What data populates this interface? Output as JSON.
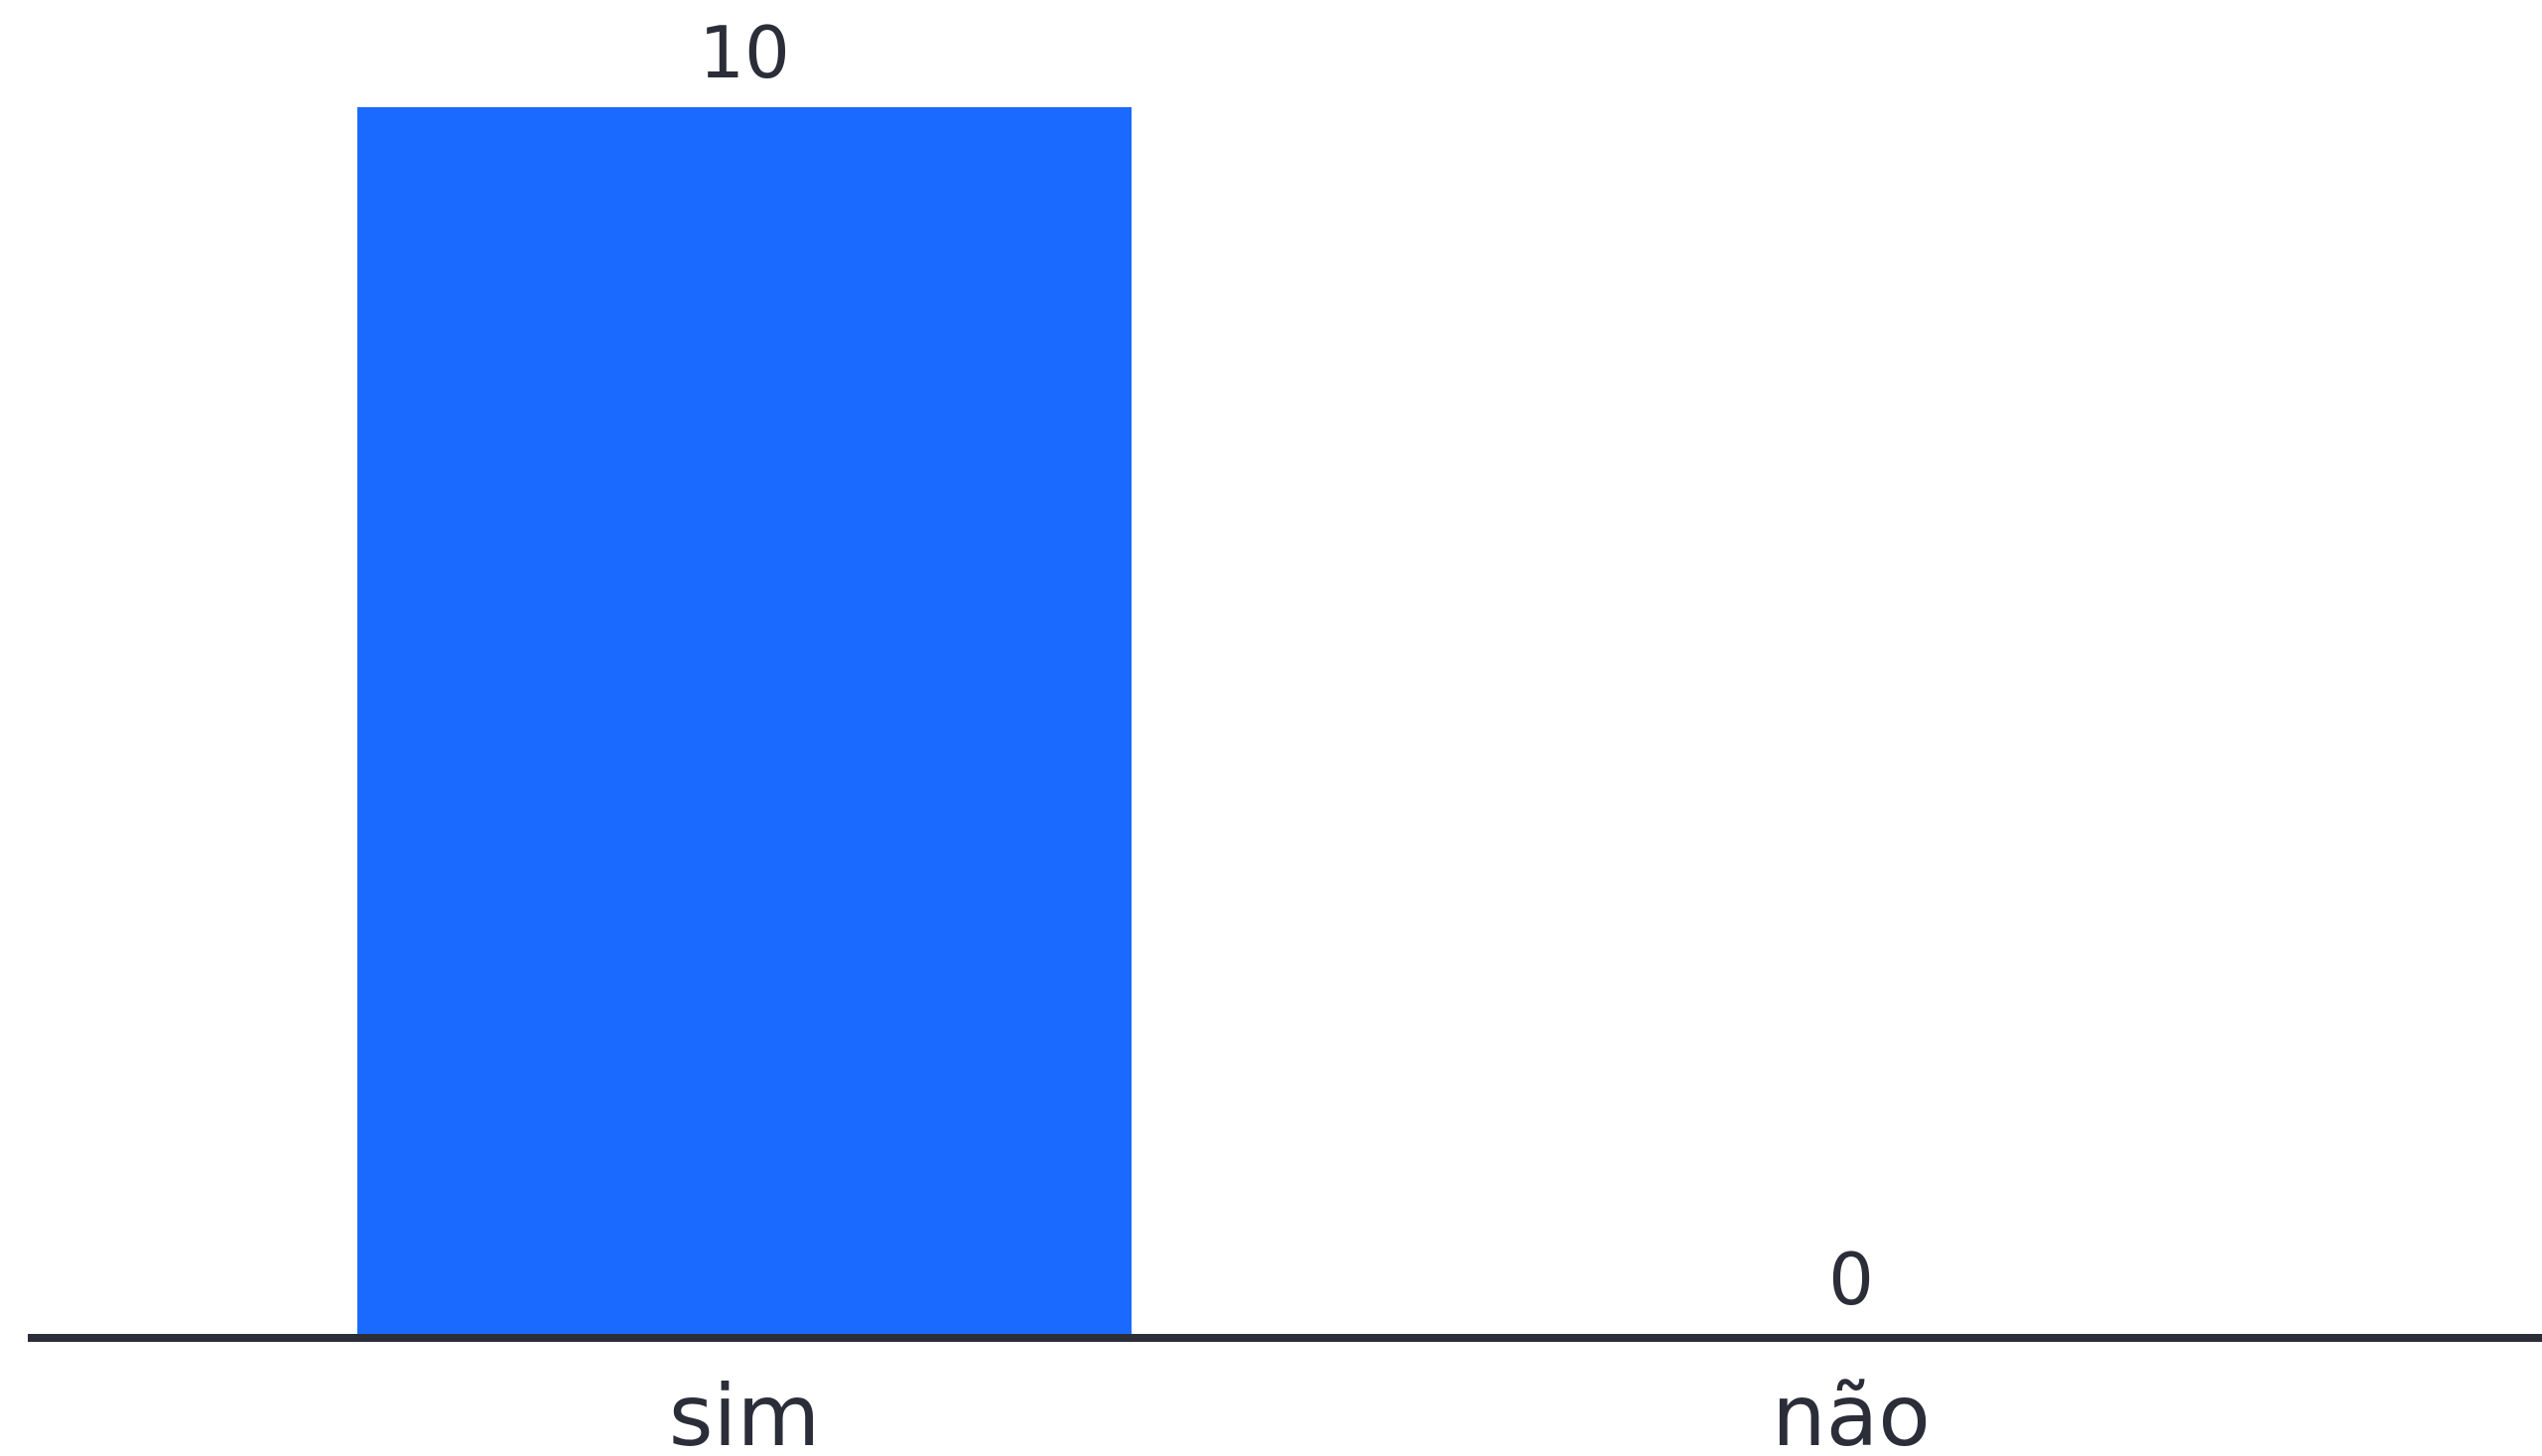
{
  "chart_data": {
    "type": "bar",
    "categories": [
      "sim",
      "não"
    ],
    "values": [
      10,
      0
    ],
    "data_labels": [
      "10",
      "0"
    ],
    "title": "",
    "xlabel": "",
    "ylabel": "",
    "ylim": [
      0,
      10
    ],
    "grid": false,
    "legend": "none",
    "colors": {
      "bar": "#1b6aff",
      "axis": "#2b2e38",
      "text": "#2b2e38",
      "background": "#ffffff"
    }
  }
}
